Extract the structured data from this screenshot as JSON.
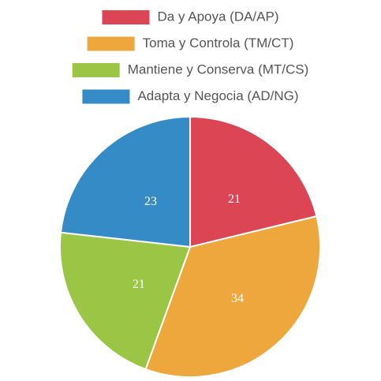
{
  "chart_data": {
    "type": "pie",
    "categories": [
      "Da y Apoya (DA/AP)",
      "Toma y Controla (TM/CT)",
      "Mantiene y Conserva (MT/CS)",
      "Adapta y Negocia (AD/NG)"
    ],
    "values": [
      21,
      34,
      21,
      23
    ],
    "colors": [
      "#dc4654",
      "#eea73d",
      "#9bc545",
      "#358bc6"
    ]
  }
}
